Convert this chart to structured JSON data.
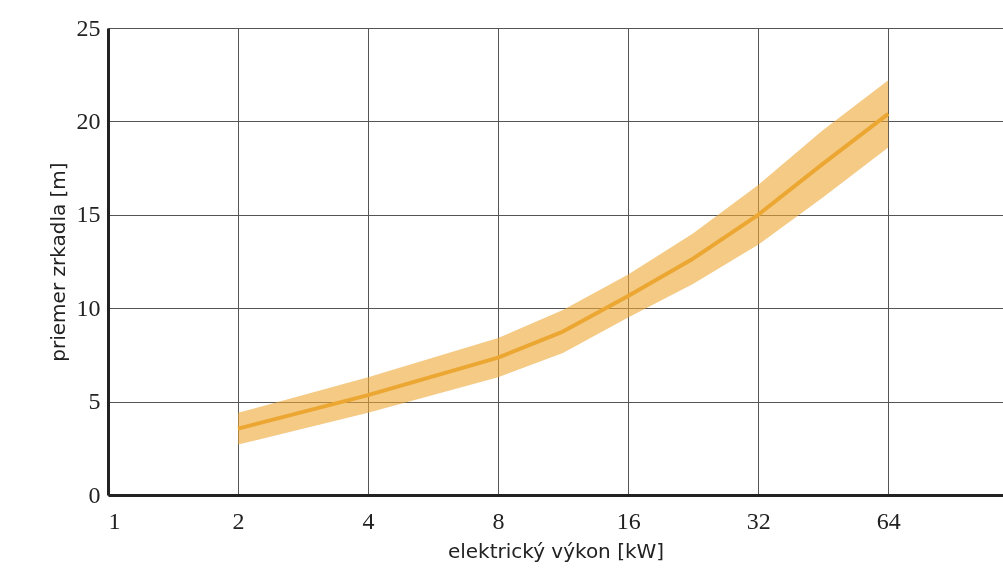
{
  "chart_data": {
    "type": "line",
    "xlabel": "elektrický výkon [kW]",
    "ylabel": "priemer zrkadla [m]",
    "log": "x",
    "xlim": [
      1,
      118
    ],
    "xticks": [
      1,
      2,
      4,
      8,
      16,
      32,
      64
    ],
    "ylim": [
      0,
      25
    ],
    "yticks": [
      0,
      5,
      10,
      15,
      20,
      25
    ],
    "grid": true,
    "marker": "none",
    "series": [
      {
        "color": "#eca733",
        "x": [
          2,
          4,
          8,
          11.3,
          16,
          22.6,
          32,
          45,
          64
        ],
        "values": [
          3.55,
          5.35,
          7.35,
          8.75,
          10.65,
          12.65,
          15.0,
          17.7,
          20.4
        ],
        "lower": [
          2.7,
          4.4,
          6.3,
          7.6,
          9.5,
          11.3,
          13.4,
          15.9,
          18.6
        ],
        "upper": [
          4.4,
          6.3,
          8.4,
          9.9,
          11.8,
          14.0,
          16.6,
          19.5,
          22.2
        ]
      }
    ]
  }
}
